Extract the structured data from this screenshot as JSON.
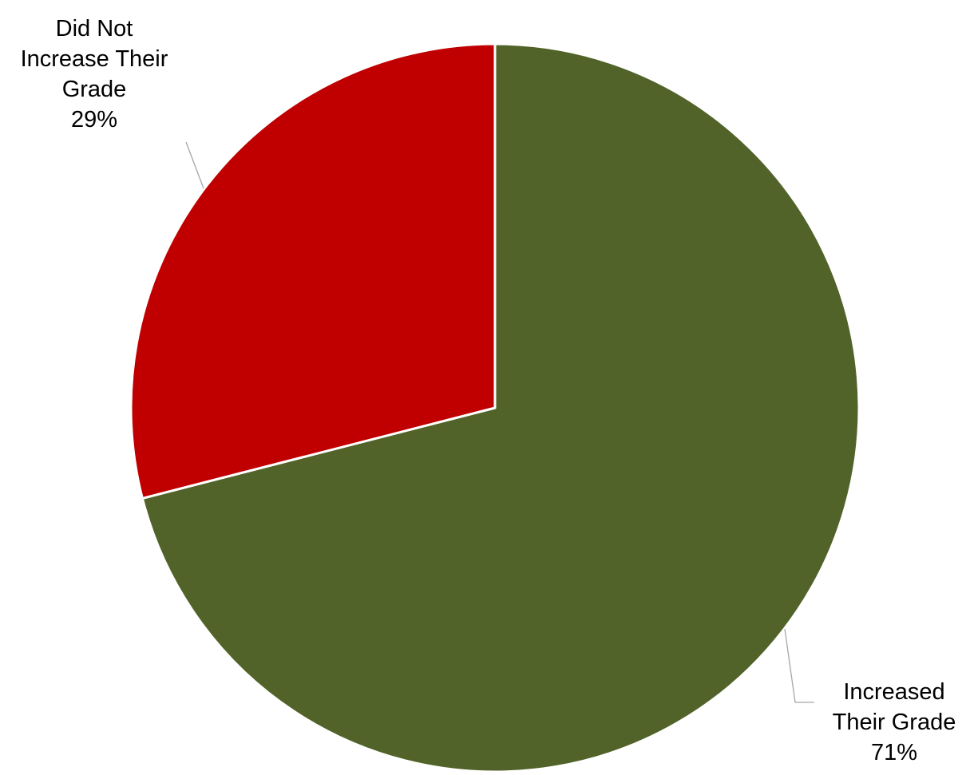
{
  "chart_data": {
    "type": "pie",
    "slices": [
      {
        "label_lines": [
          "Increased",
          "Their Grade"
        ],
        "percent_label": "71%",
        "value": 71,
        "color": "#526329"
      },
      {
        "label_lines": [
          "Did Not",
          "Increase Their",
          "Grade"
        ],
        "percent_label": "29%",
        "value": 29,
        "color": "#C00000"
      }
    ],
    "start": "12 o'clock",
    "direction": "clockwise",
    "legend": "none",
    "data_labels": "outside with leader lines"
  }
}
